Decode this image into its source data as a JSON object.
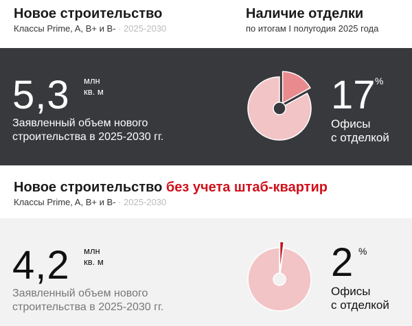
{
  "section1": {
    "title": "Новое строительство",
    "subtitle": "Классы Prime, A, B+ и B-",
    "years": "· 2025-2030"
  },
  "finish": {
    "title": "Наличие отделки",
    "subtitle": "по итогам I полугодия 2025 года"
  },
  "band1": {
    "value": "5,3",
    "unit1": "млн",
    "unit2": "кв. м",
    "desc1": "Заявленный объем нового",
    "desc2": "строительства в 2025-2030 гг.",
    "pct": "17",
    "pct_sign": "%",
    "label1": "Офисы",
    "label2": "с отделкой"
  },
  "section2": {
    "title": "Новое строительство",
    "title_accent": "без учета штаб-квартир",
    "subtitle": "Классы Prime, A, B+ и B-",
    "years": "· 2025-2030"
  },
  "band2": {
    "value": "4,2",
    "unit1": "млн",
    "unit2": "кв. м",
    "desc1": "Заявленный объем нового",
    "desc2": "строительства в 2025-2030 гг.",
    "pct": "2",
    "pct_sign": "%",
    "label1": "Офисы",
    "label2": "с отделкой"
  },
  "colors": {
    "dark_band": "#38393d",
    "light_band": "#f2f2f2",
    "accent": "#d0101b",
    "pie_base": "#f2c4c6",
    "pie1_slice": "#e88a8e",
    "pie2_slice": "#c0141c"
  },
  "chart_data": [
    {
      "type": "pie",
      "values": [
        17,
        83
      ],
      "highlight_index": 0
    },
    {
      "type": "pie",
      "values": [
        2,
        98
      ],
      "highlight_index": 0
    }
  ]
}
